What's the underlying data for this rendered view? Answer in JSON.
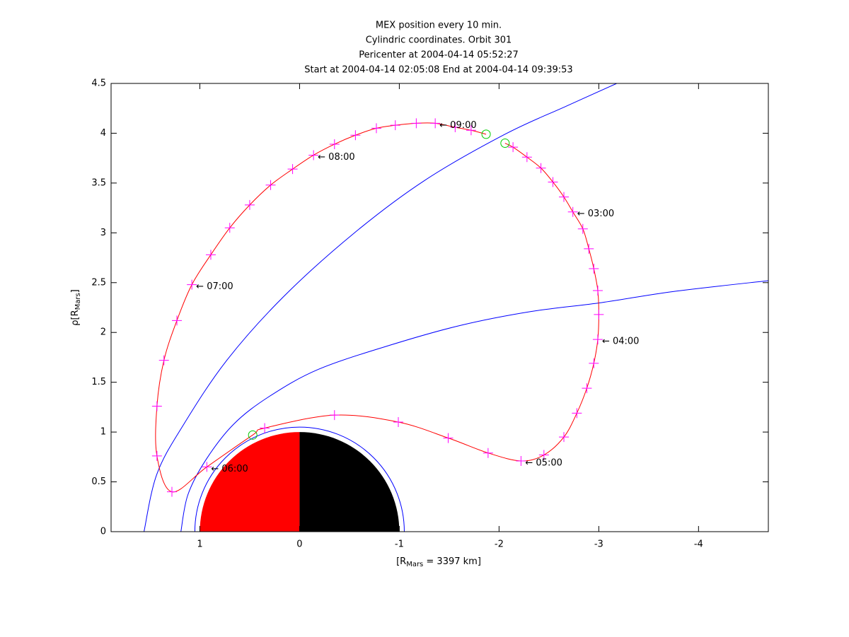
{
  "chart_data": {
    "type": "line",
    "title": [
      "MEX position every 10 min.",
      "Cylindric coordinates. Orbit 301",
      "Pericenter at 2004-04-14 05:52:27",
      "Start at 2004-04-14 02:05:08 End at 2004-04-14 09:39:53"
    ],
    "xlabel": [
      "[R",
      "Mars",
      " = 3397 km]"
    ],
    "ylabel": [
      "ρ[R",
      "Mars",
      "]"
    ],
    "xlim": [
      1.89,
      -4.7
    ],
    "ylim": [
      0,
      4.5
    ],
    "xticks": [
      1,
      0,
      -1,
      -2,
      -3,
      -4
    ],
    "yticks": [
      0,
      0.5,
      1,
      1.5,
      2,
      2.5,
      3,
      3.5,
      4,
      4.5
    ],
    "planet": {
      "radius": 1,
      "colors": [
        "red",
        "black"
      ]
    },
    "ring": {
      "radius": 1.05,
      "color": "blue"
    },
    "series": [
      {
        "style": "line",
        "color": "blue",
        "x": [
          1.56,
          1.43,
          1.16,
          0.73,
          0.16,
          -0.55,
          -1.26,
          -2.06,
          -2.67,
          -3.18
        ],
        "values": [
          0,
          0.58,
          1.08,
          1.72,
          2.36,
          3.0,
          3.53,
          3.99,
          4.27,
          4.5
        ]
      },
      {
        "style": "line",
        "color": "blue",
        "x": [
          1.19,
          1.12,
          0.94,
          0.66,
          0.3,
          -0.19,
          -0.9,
          -1.61,
          -2.32,
          -3.03,
          -3.74,
          -4.7
        ],
        "values": [
          0,
          0.37,
          0.72,
          1.08,
          1.36,
          1.63,
          1.87,
          2.07,
          2.21,
          2.3,
          2.41,
          2.52
        ]
      },
      {
        "style": "line",
        "color": "red",
        "x": [
          -2.06,
          -2.14,
          -2.28,
          -2.42,
          -2.54,
          -2.65,
          -2.74,
          -2.84,
          -2.9,
          -2.95,
          -2.99,
          -3.0,
          -2.99,
          -2.95,
          -2.88,
          -2.78,
          -2.65,
          -2.45,
          -2.22,
          -1.89,
          -1.49,
          -0.99,
          -0.35,
          0.35,
          0.47,
          0.93,
          1.28,
          1.43,
          1.43,
          1.36,
          1.23,
          1.08,
          0.89,
          0.7,
          0.5,
          0.29,
          0.07,
          -0.14,
          -0.35,
          -0.56,
          -0.77,
          -0.96,
          -1.17,
          -1.36,
          -1.56,
          -1.72,
          -1.87
        ],
        "values": [
          3.9,
          3.86,
          3.76,
          3.65,
          3.51,
          3.36,
          3.21,
          3.04,
          2.84,
          2.64,
          2.42,
          2.18,
          1.93,
          1.69,
          1.44,
          1.19,
          0.95,
          0.77,
          0.71,
          0.79,
          0.94,
          1.1,
          1.17,
          1.04,
          0.97,
          0.65,
          0.4,
          0.76,
          1.26,
          1.72,
          2.12,
          2.48,
          2.78,
          3.05,
          3.28,
          3.48,
          3.64,
          3.78,
          3.89,
          3.98,
          4.05,
          4.08,
          4.1,
          4.1,
          4.06,
          4.03,
          3.99
        ]
      },
      {
        "style": "plus",
        "color": "magenta",
        "x": [
          -2.14,
          -2.28,
          -2.42,
          -2.54,
          -2.65,
          -2.74,
          -2.84,
          -2.9,
          -2.95,
          -2.99,
          -3.0,
          -2.99,
          -2.95,
          -2.88,
          -2.78,
          -2.65,
          -2.45,
          -2.22,
          -1.89,
          -1.49,
          -0.99,
          -0.35,
          0.35,
          0.93,
          1.28,
          1.43,
          1.43,
          1.36,
          1.23,
          1.08,
          0.89,
          0.7,
          0.5,
          0.29,
          0.07,
          -0.14,
          -0.35,
          -0.56,
          -0.77,
          -0.96,
          -1.17,
          -1.36,
          -1.56,
          -1.72
        ],
        "values": [
          3.86,
          3.76,
          3.65,
          3.51,
          3.36,
          3.21,
          3.04,
          2.84,
          2.64,
          2.42,
          2.18,
          1.93,
          1.69,
          1.44,
          1.19,
          0.95,
          0.77,
          0.71,
          0.79,
          0.94,
          1.1,
          1.17,
          1.04,
          0.65,
          0.4,
          0.76,
          1.26,
          1.72,
          2.12,
          2.48,
          2.78,
          3.05,
          3.28,
          3.48,
          3.64,
          3.78,
          3.89,
          3.98,
          4.05,
          4.08,
          4.1,
          4.1,
          4.06,
          4.03
        ]
      },
      {
        "style": "circle",
        "color": "#00cc00",
        "x": [
          -2.06,
          0.47,
          -1.87
        ],
        "values": [
          3.9,
          0.97,
          3.99
        ]
      }
    ],
    "annotations": [
      {
        "text": "← 03:00",
        "x": -2.74,
        "y": 3.21
      },
      {
        "text": "← 04:00",
        "x": -2.99,
        "y": 1.93
      },
      {
        "text": "← 05:00",
        "x": -2.22,
        "y": 0.71
      },
      {
        "text": "← 06:00",
        "x": 0.93,
        "y": 0.65
      },
      {
        "text": "← 07:00",
        "x": 1.08,
        "y": 2.48
      },
      {
        "text": "← 08:00",
        "x": -0.14,
        "y": 3.78
      },
      {
        "text": "← 09:00",
        "x": -1.36,
        "y": 4.1
      }
    ]
  }
}
